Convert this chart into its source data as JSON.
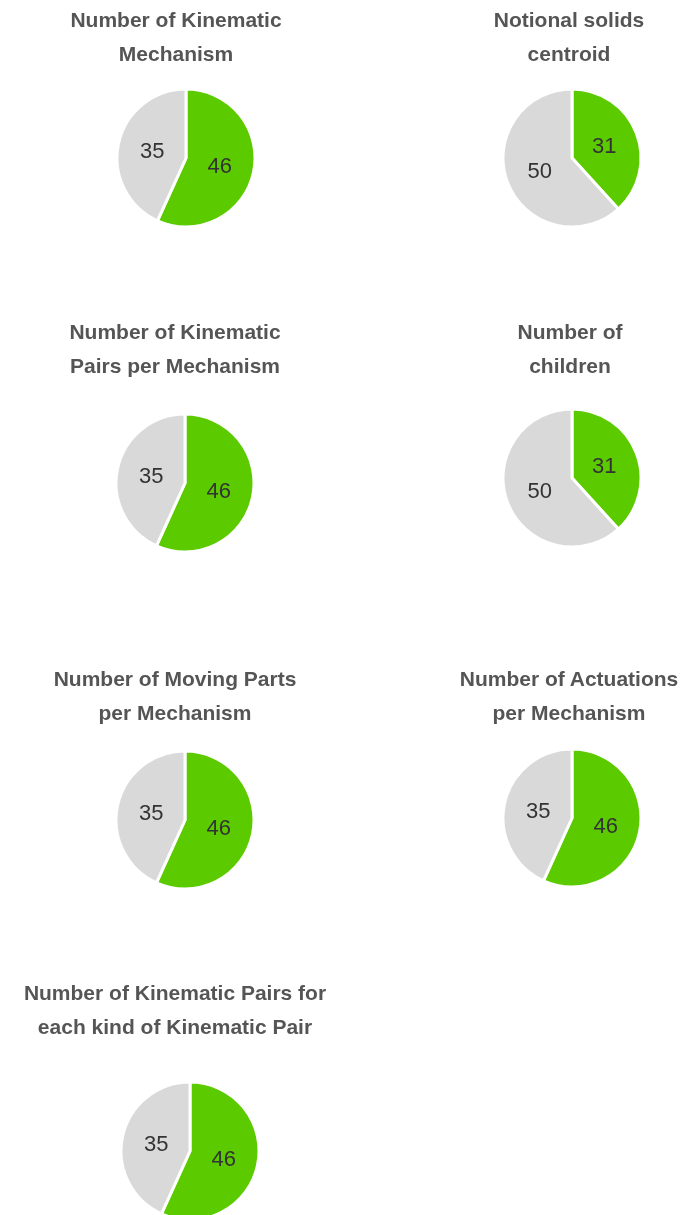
{
  "chart_data": [
    {
      "type": "pie",
      "title": "Number of Kinematic\nMechanism",
      "categories": [
        null,
        null
      ],
      "values": [
        46,
        35
      ],
      "colors": [
        "#5bcb00",
        "#d9d9d9"
      ],
      "data_labels": true
    },
    {
      "type": "pie",
      "title": "Notional solids\ncentroid",
      "categories": [
        null,
        null
      ],
      "values": [
        31,
        50
      ],
      "colors": [
        "#5bcb00",
        "#d9d9d9"
      ],
      "data_labels": true
    },
    {
      "type": "pie",
      "title": "Number of Kinematic\nPairs per Mechanism",
      "categories": [
        null,
        null
      ],
      "values": [
        46,
        35
      ],
      "colors": [
        "#5bcb00",
        "#d9d9d9"
      ],
      "data_labels": true
    },
    {
      "type": "pie",
      "title": "Number of\nchildren",
      "categories": [
        null,
        null
      ],
      "values": [
        31,
        50
      ],
      "colors": [
        "#5bcb00",
        "#d9d9d9"
      ],
      "data_labels": true
    },
    {
      "type": "pie",
      "title": "Number of Moving Parts\nper Mechanism",
      "categories": [
        null,
        null
      ],
      "values": [
        46,
        35
      ],
      "colors": [
        "#5bcb00",
        "#d9d9d9"
      ],
      "data_labels": true
    },
    {
      "type": "pie",
      "title": "Number of Actuations\nper Mechanism",
      "categories": [
        null,
        null
      ],
      "values": [
        46,
        35
      ],
      "colors": [
        "#5bcb00",
        "#d9d9d9"
      ],
      "data_labels": true
    },
    {
      "type": "pie",
      "title": "Number of Kinematic Pairs for\neach kind of Kinematic Pair",
      "categories": [
        null,
        null
      ],
      "values": [
        46,
        35
      ],
      "colors": [
        "#5bcb00",
        "#d9d9d9"
      ],
      "data_labels": true
    }
  ]
}
